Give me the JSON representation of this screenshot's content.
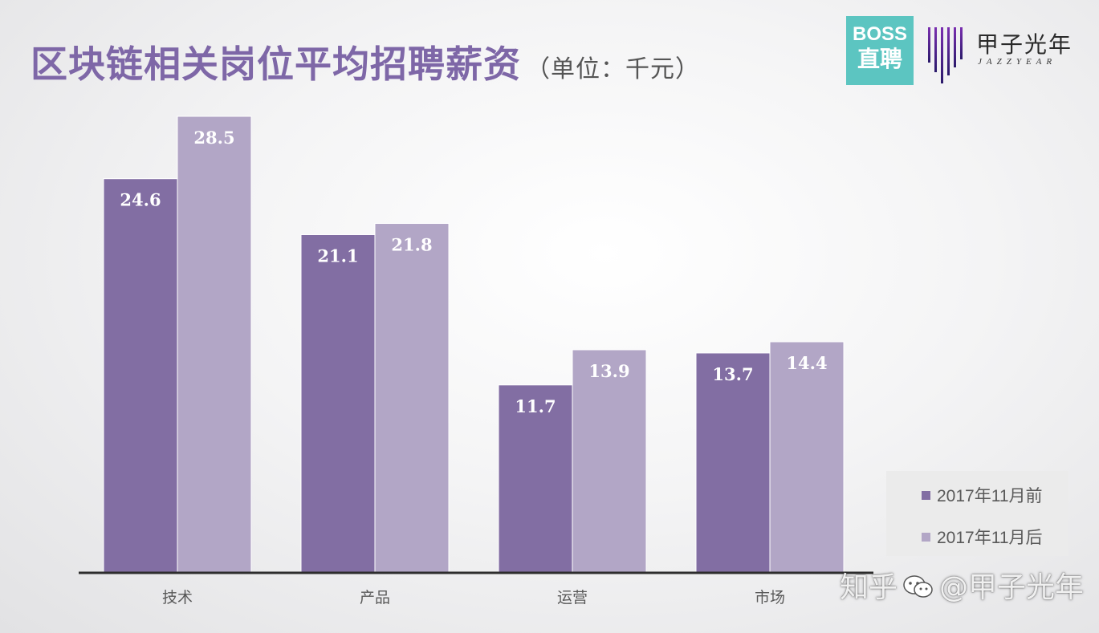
{
  "header": {
    "title": "区块链相关岗位平均招聘薪资",
    "unit": "（单位：千元）"
  },
  "logos": {
    "boss_line1": "BOSS",
    "boss_line2": "直聘",
    "jzy_name": "甲子光年",
    "jzy_sub": "JAZZYEAR"
  },
  "watermark": {
    "prefix": "知乎",
    "suffix": "@甲子光年"
  },
  "colors": {
    "series1": "#826ea3",
    "series2": "#b2a6c6",
    "title": "#7e67a7",
    "axis": "#2d2d2d",
    "boss_bg": "#5cc5c1"
  },
  "chart_data": {
    "type": "bar",
    "categories": [
      "技术",
      "产品",
      "运营",
      "市场"
    ],
    "series": [
      {
        "name": "2017年11月前",
        "values": [
          24.6,
          21.1,
          11.7,
          13.7
        ]
      },
      {
        "name": "2017年11月后",
        "values": [
          28.5,
          21.8,
          13.9,
          14.4
        ]
      }
    ],
    "ylim": [
      0,
      28.5
    ],
    "value_labels": [
      [
        "24.6",
        "21.1",
        "11.7",
        "13.7"
      ],
      [
        "28.5",
        "21.8",
        "13.9",
        "14.4"
      ]
    ],
    "grid": false,
    "legend_position": "bottom-right"
  }
}
